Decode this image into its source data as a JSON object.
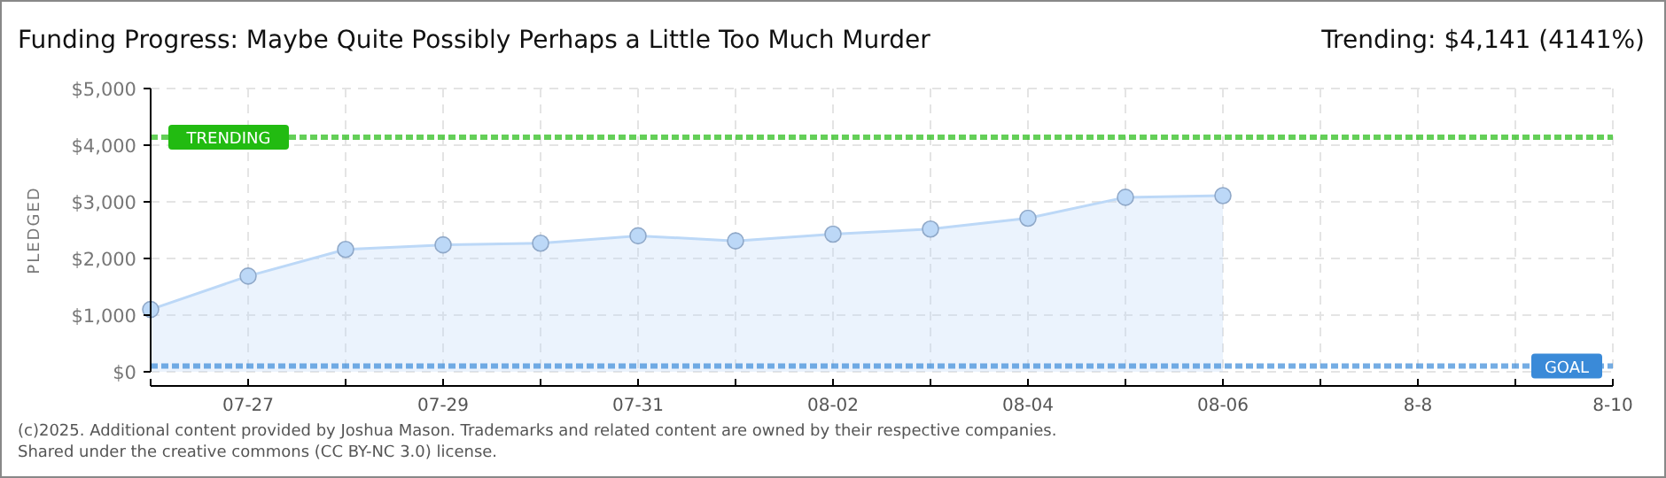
{
  "chart_data": {
    "type": "area",
    "title": "Funding Progress: Maybe Quite Possibly Perhaps a Little Too Much Murder",
    "subtitle": "Trending: $4,141 (4141%)",
    "ylabel": "PLEDGED",
    "x": [
      "2025-07-26",
      "2025-07-27",
      "2025-07-28",
      "2025-07-29",
      "2025-07-30",
      "2025-07-31",
      "2025-08-01",
      "2025-08-02",
      "2025-08-03",
      "2025-08-04",
      "2025-08-05",
      "2025-08-06"
    ],
    "series": [
      {
        "color": "#bcd8f7",
        "values": [
          1100,
          1690,
          2160,
          2240,
          2270,
          2400,
          2310,
          2430,
          2520,
          2710,
          3080,
          3110
        ]
      }
    ],
    "xlim": [
      "2025-07-26",
      "2025-08-10"
    ],
    "xticks": [
      {
        "value": "2025-07-26",
        "label": null
      },
      {
        "value": "2025-07-27",
        "label": "07-27"
      },
      {
        "value": "2025-07-28",
        "label": null
      },
      {
        "value": "2025-07-29",
        "label": "07-29"
      },
      {
        "value": "2025-07-30",
        "label": null
      },
      {
        "value": "2025-07-31",
        "label": "07-31"
      },
      {
        "value": "2025-08-01",
        "label": null
      },
      {
        "value": "2025-08-02",
        "label": "08-02"
      },
      {
        "value": "2025-08-03",
        "label": null
      },
      {
        "value": "2025-08-04",
        "label": "08-04"
      },
      {
        "value": "2025-08-05",
        "label": null
      },
      {
        "value": "2025-08-06",
        "label": "08-06"
      },
      {
        "value": "2025-08-07",
        "label": null
      },
      {
        "value": "2025-08-08",
        "label": "8-8"
      },
      {
        "value": "2025-08-09",
        "label": null
      },
      {
        "value": "2025-08-10",
        "label": "8-10"
      }
    ],
    "ylim": [
      0,
      5000
    ],
    "yticks": [
      {
        "value": 0,
        "label": "$0"
      },
      {
        "value": 1000,
        "label": "$1,000"
      },
      {
        "value": 2000,
        "label": "$2,000"
      },
      {
        "value": 3000,
        "label": "$3,000"
      },
      {
        "value": 4000,
        "label": "$4,000"
      },
      {
        "value": 5000,
        "label": "$5,000"
      }
    ],
    "ref_lines": [
      {
        "axis": "y",
        "value": 4141,
        "label": "TRENDING",
        "color": "#22bb11",
        "line_style": "dotted"
      },
      {
        "axis": "y",
        "value": 100,
        "label": "GOAL",
        "color": "#3a8ad8",
        "line_style": "dotted"
      }
    ],
    "grid": true,
    "marker": "circle",
    "line_style": "solid",
    "annotations": [
      "(c)2025. Additional content provided by Joshua Mason. Trademarks and related content are owned by their respective companies.",
      "Shared under the creative commons (CC BY-NC 3.0) license."
    ]
  }
}
